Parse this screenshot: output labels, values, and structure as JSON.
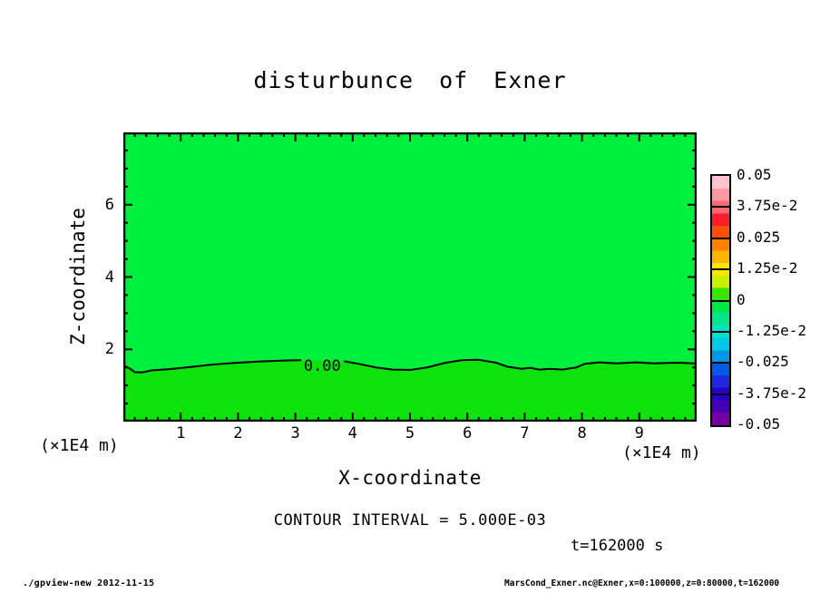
{
  "header": {
    "title": "disturbunce of Exner"
  },
  "footer": {
    "left_text": "./gpview-new  2012-11-15",
    "right_text": "MarsCond_Exner.nc@Exner,x=0:100000,z=0:80000,t=162000"
  },
  "chart_data": {
    "type": "contour",
    "title": "disturbunce of Exner",
    "xlabel": "X-coordinate",
    "ylabel": "Z-coordinate",
    "x_unit": "(×1E4 m)",
    "z_unit": "(×1E4 m)",
    "xlim": [
      0,
      10
    ],
    "zlim": [
      0,
      8
    ],
    "x_major_ticks": [
      1,
      2,
      3,
      4,
      5,
      6,
      7,
      8,
      9
    ],
    "x_minor_step": 0.2,
    "z_major_ticks": [
      2,
      4,
      6
    ],
    "z_minor_step": 0.5,
    "grid": false,
    "contour_interval_text": "CONTOUR INTERVAL = 5.000E-03",
    "time_text": "t=162000 s",
    "fill_above_color": "#00ef3c",
    "fill_below_color": "#0be30b",
    "contour": {
      "level": 0.0,
      "label": "0.00",
      "label_x": 3.47,
      "label_z": 1.55,
      "segments": [
        {
          "points": [
            [
              0.0,
              1.55
            ],
            [
              0.1,
              1.48
            ],
            [
              0.2,
              1.37
            ],
            [
              0.32,
              1.36
            ],
            [
              0.5,
              1.42
            ],
            [
              0.78,
              1.45
            ],
            [
              1.1,
              1.5
            ],
            [
              1.5,
              1.57
            ],
            [
              1.9,
              1.62
            ],
            [
              2.35,
              1.66
            ],
            [
              2.8,
              1.69
            ],
            [
              3.1,
              1.7
            ]
          ]
        },
        {
          "points": [
            [
              3.85,
              1.67
            ],
            [
              4.1,
              1.6
            ],
            [
              4.4,
              1.5
            ],
            [
              4.7,
              1.44
            ],
            [
              5.0,
              1.43
            ],
            [
              5.3,
              1.5
            ],
            [
              5.6,
              1.62
            ],
            [
              5.9,
              1.7
            ],
            [
              6.2,
              1.71
            ],
            [
              6.5,
              1.63
            ],
            [
              6.7,
              1.52
            ],
            [
              6.95,
              1.46
            ],
            [
              7.1,
              1.49
            ],
            [
              7.25,
              1.44
            ],
            [
              7.45,
              1.46
            ],
            [
              7.65,
              1.44
            ],
            [
              7.9,
              1.5
            ],
            [
              8.05,
              1.6
            ],
            [
              8.3,
              1.64
            ],
            [
              8.6,
              1.61
            ],
            [
              8.95,
              1.64
            ],
            [
              9.25,
              1.61
            ],
            [
              9.65,
              1.63
            ],
            [
              10.0,
              1.61
            ]
          ]
        }
      ]
    },
    "colorbar": {
      "labels": [
        "0.05",
        "3.75e-2",
        "0.025",
        "1.25e-2",
        "0",
        "-1.25e-2",
        "-0.025",
        "-3.75e-2",
        "-0.05"
      ],
      "band_colors_top_to_bottom": [
        "#ffc3cd",
        "#ff96a3",
        "#ff6973",
        "#fa1e28",
        "#ff4f00",
        "#ff8200",
        "#ffb400",
        "#ffe600",
        "#c8f000",
        "#37e600",
        "#00e646",
        "#00e68c",
        "#00e1c8",
        "#00c8e6",
        "#0096e6",
        "#005ae6",
        "#1e28dc",
        "#2800c8",
        "#4600b4",
        "#7300a5"
      ],
      "value_max": 0.05,
      "value_min": -0.05
    }
  }
}
